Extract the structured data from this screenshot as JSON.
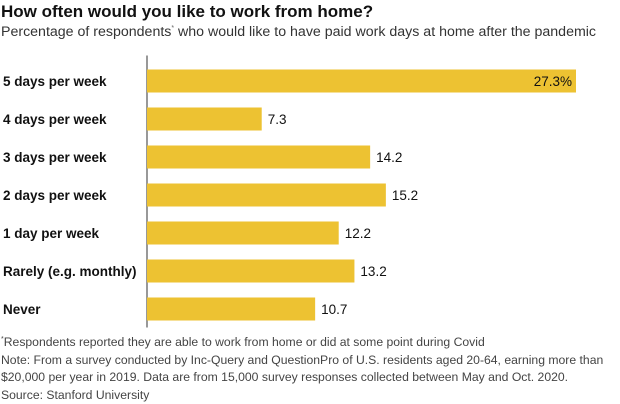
{
  "header": {
    "title": "How often would you like to work from home?",
    "subtitle": "Percentage of respondents",
    "subtitle_marker": "*",
    "subtitle_rest": " who would like to have paid work days at home after the pandemic"
  },
  "chart_data": {
    "type": "bar",
    "orientation": "horizontal",
    "categories": [
      "5 days per week",
      "4 days per week",
      "3 days per week",
      "2 days per week",
      "1 day per week",
      "Rarely (e.g. monthly)",
      "Never"
    ],
    "values": [
      27.3,
      7.3,
      14.2,
      15.2,
      12.2,
      13.2,
      10.7
    ],
    "value_labels": [
      "27.3%",
      "7.3",
      "14.2",
      "15.2",
      "12.2",
      "13.2",
      "10.7"
    ],
    "xlim": [
      0,
      27.3
    ],
    "grid": false,
    "bar_color": "#EDC232",
    "axis_color": "#555555"
  },
  "footnotes": {
    "asterisk_marker": "*",
    "asterisk_note": "Respondents reported they are able to work from home or did at some point during Covid",
    "note_line1": "Note: From a survey conducted by Inc-Query and QuestionPro of U.S. residents aged 20-64, earning more than",
    "note_line2": "$20,000 per year in 2019. Data are from 15,000 survey responses collected between May and Oct. 2020.",
    "source": "Source: Stanford University"
  }
}
